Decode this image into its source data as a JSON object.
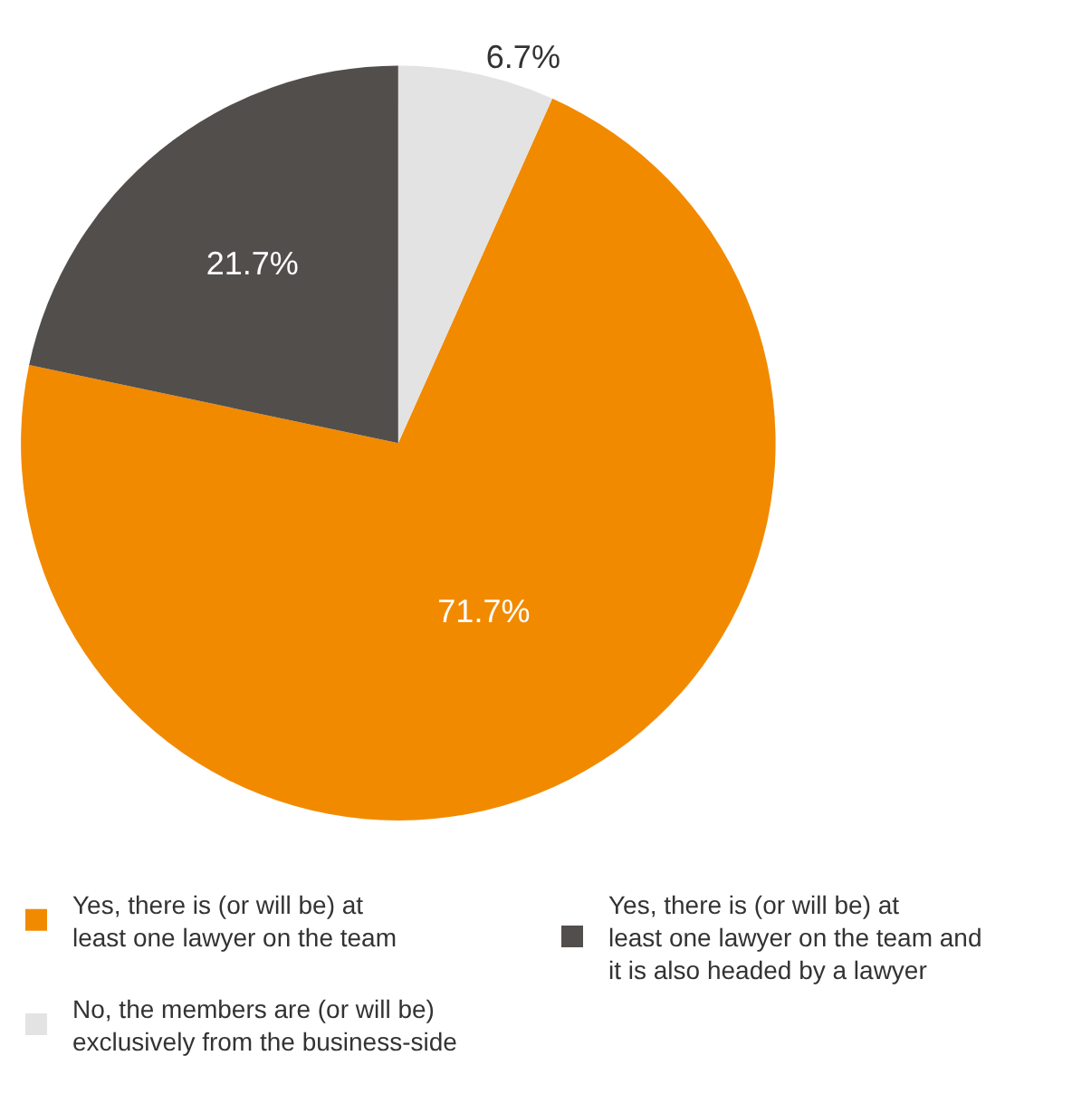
{
  "chart_data": {
    "type": "pie",
    "categories": [
      "Yes, there is (or will be) at least one lawyer on the team",
      "Yes, there is (or will be) at least one lawyer on the team and it is also headed by a lawyer",
      "No, the members are (or will be) exclusively from the business-side"
    ],
    "values": [
      71.7,
      21.7,
      6.7
    ],
    "colors": [
      "#f28a00",
      "#524e4c",
      "#e3e3e3"
    ],
    "value_labels": [
      "71.7%",
      "21.7%",
      "6.7%"
    ],
    "legend": "bottom"
  }
}
